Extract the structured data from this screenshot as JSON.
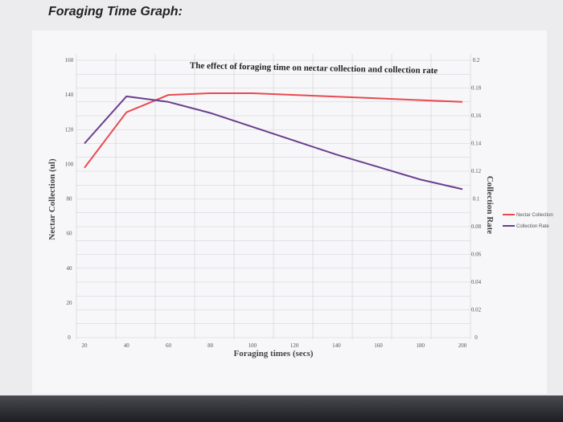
{
  "page": {
    "heading": "Foraging Time Graph:"
  },
  "colors": {
    "nectar_collection": "#e84a4f",
    "collection_rate": "#6a3f8c",
    "gridline": "#cfcfd6"
  },
  "chart_data": {
    "type": "line",
    "title": "The effect of foraging time on nectar collection and collection rate",
    "xlabel": "Foraging times (secs)",
    "ylabel": "Nectar Collection (ul)",
    "y2label": "Collection Rate",
    "x_ticks": [
      "20",
      "40",
      "60",
      "80",
      "100",
      "120",
      "140",
      "160",
      "180",
      "200"
    ],
    "y_ticks": [
      "0",
      "20",
      "40",
      "60",
      "80",
      "100",
      "120",
      "140",
      "160"
    ],
    "y2_ticks": [
      "0",
      "0.02",
      "0.04",
      "0.06",
      "0.08",
      "0.1",
      "0.12",
      "0.14",
      "0.16",
      "0.18",
      "0.2"
    ],
    "xlim": [
      20,
      200
    ],
    "ylim": [
      0,
      160
    ],
    "y2lim": [
      0,
      0.2
    ],
    "grid": true,
    "legend_position": "right",
    "series": [
      {
        "name": "Nectar Collection",
        "axis": "left",
        "x": [
          20,
          40,
          60,
          80,
          100,
          120,
          140,
          160,
          180,
          200
        ],
        "y": [
          98,
          130,
          140,
          141,
          141,
          140,
          139,
          138,
          137,
          136
        ]
      },
      {
        "name": "Collection Rate",
        "axis": "right",
        "x": [
          20,
          40,
          60,
          80,
          100,
          120,
          140,
          160,
          180,
          200
        ],
        "y": [
          0.14,
          0.174,
          0.17,
          0.162,
          0.152,
          0.142,
          0.132,
          0.123,
          0.114,
          0.107
        ]
      }
    ]
  }
}
